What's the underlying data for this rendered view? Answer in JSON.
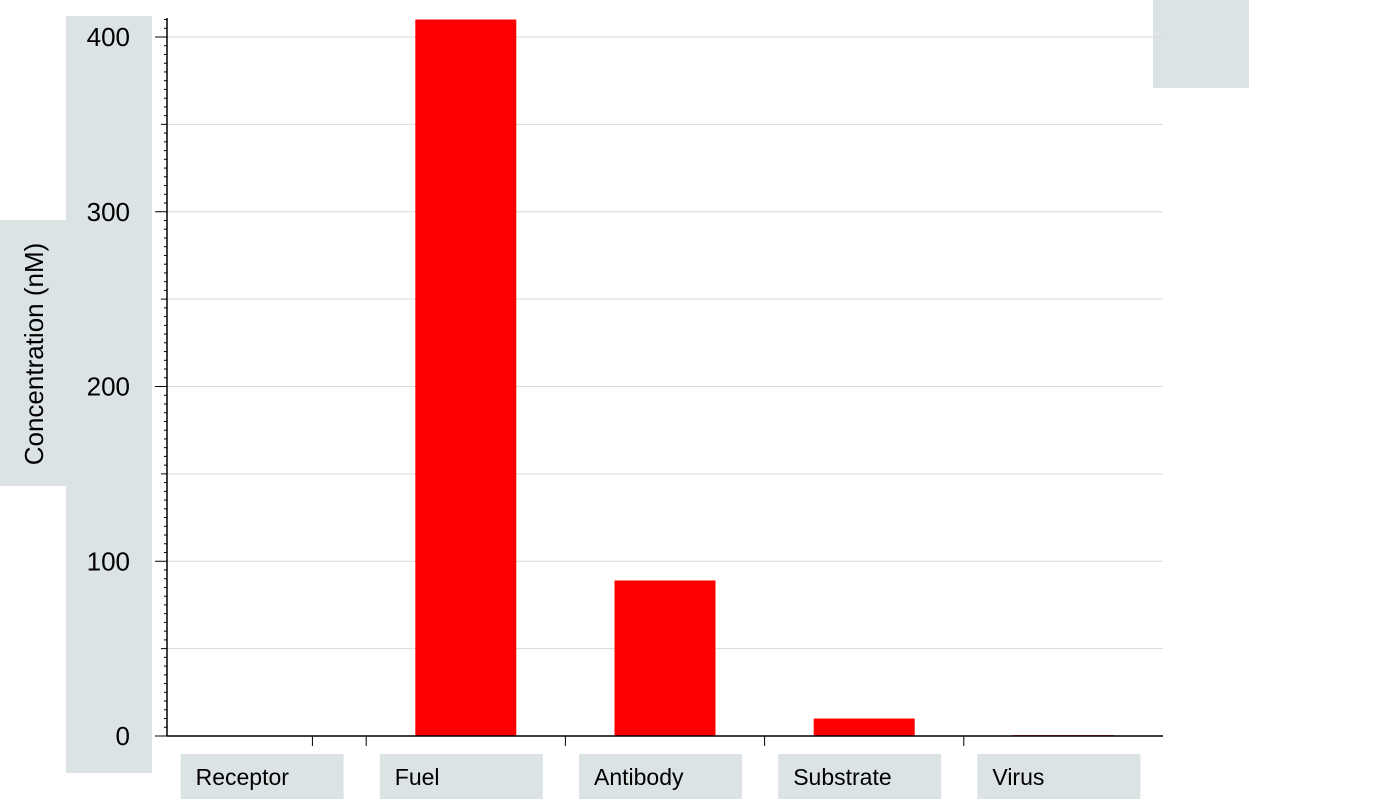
{
  "chart_data": {
    "type": "bar",
    "categories": [
      "Receptor",
      "Fuel",
      "Antibody",
      "Substrate",
      "Virus"
    ],
    "values": [
      0,
      410,
      89,
      10,
      0.5
    ],
    "ylabel": "Concentration (nM)",
    "xlabel": "",
    "ylim": [
      0,
      400
    ],
    "yticks": [
      0,
      100,
      200,
      300,
      400
    ],
    "grid": true,
    "bar_color": "#ff0000",
    "panel_color": "#dbe3e5"
  }
}
